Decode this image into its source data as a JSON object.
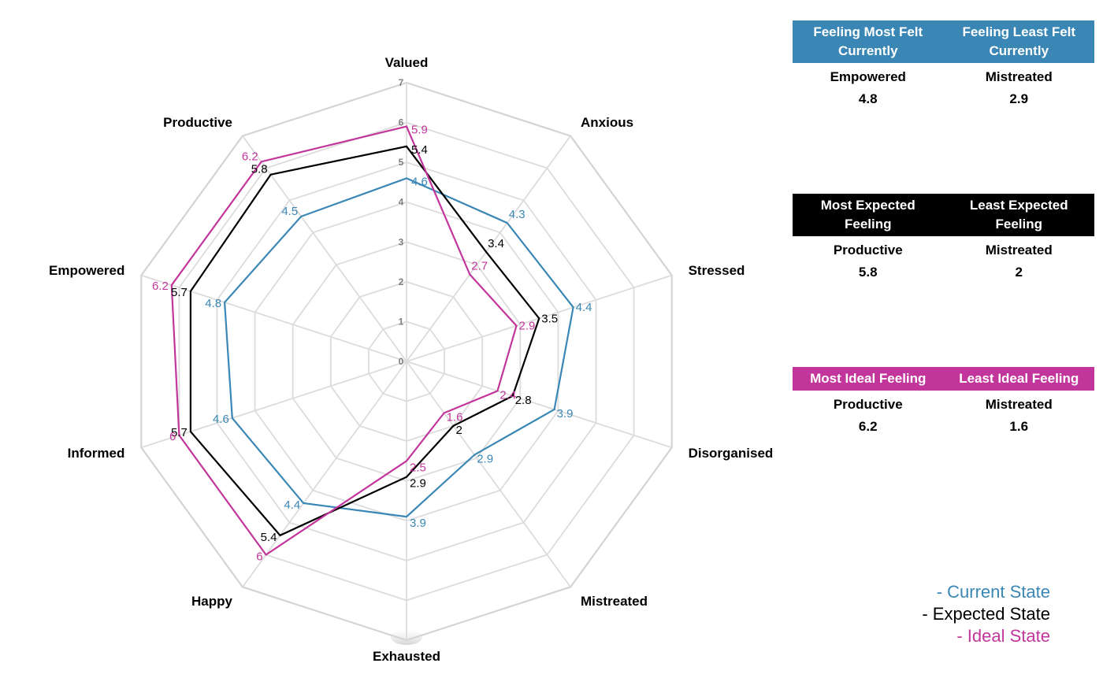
{
  "chart_data": {
    "type": "radar",
    "categories": [
      "Valued",
      "Anxious",
      "Stressed",
      "Disorganised",
      "Mistreated",
      "Exhausted",
      "Happy",
      "Informed",
      "Empowered",
      "Productive"
    ],
    "rmin": 0,
    "rmax": 7,
    "ticks": [
      0,
      1,
      2,
      3,
      4,
      5,
      6,
      7
    ],
    "grid": true,
    "series": [
      {
        "name": "Current State",
        "color": "#3a87b5",
        "values": [
          4.6,
          4.3,
          4.4,
          3.9,
          2.9,
          3.9,
          4.4,
          4.6,
          4.8,
          4.5
        ],
        "labels": [
          "4.6",
          "4.3",
          "4.4",
          "3.9",
          "2.9",
          "3.9",
          "4.4",
          "4.6",
          "4.8",
          "4.5"
        ]
      },
      {
        "name": "Expected State",
        "color": "#000000",
        "values": [
          5.4,
          3.4,
          3.5,
          2.8,
          2,
          2.9,
          5.4,
          5.7,
          5.7,
          5.8
        ],
        "labels": [
          "5.4",
          "3.4",
          "3.5",
          "2.8",
          "2",
          "2.9",
          "5.4",
          "5.7",
          "5.7",
          "5.8"
        ]
      },
      {
        "name": "Ideal State",
        "color": "#c2369b",
        "values": [
          5.9,
          2.7,
          2.9,
          2.4,
          1.6,
          2.5,
          6,
          6,
          6.2,
          6.2
        ],
        "labels": [
          "5.9",
          "2.7",
          "2.9",
          "2.4",
          "1.6",
          "2.5",
          "6",
          "6",
          "6.2",
          "6.2"
        ]
      }
    ]
  },
  "summaries": [
    {
      "color": "#3a87b5",
      "head_left": "Feeling Most Felt Currently",
      "head_right": "Feeling Least Felt Currently",
      "left_feeling": "Empowered",
      "right_feeling": "Mistreated",
      "left_value": "4.8",
      "right_value": "2.9"
    },
    {
      "color": "#000000",
      "head_left": "Most Expected Feeling",
      "head_right": "Least Expected Feeling",
      "left_feeling": "Productive",
      "right_feeling": "Mistreated",
      "left_value": "5.8",
      "right_value": "2"
    },
    {
      "color": "#c2369b",
      "head_left": "Most Ideal Feeling",
      "head_right": "Least Ideal Feeling",
      "left_feeling": "Productive",
      "right_feeling": "Mistreated",
      "left_value": "6.2",
      "right_value": "1.6"
    }
  ],
  "legend": [
    {
      "text": "- Current State",
      "color": "#3a87b5"
    },
    {
      "text": "- Expected State",
      "color": "#000000"
    },
    {
      "text": "- Ideal State",
      "color": "#c2369b"
    }
  ]
}
